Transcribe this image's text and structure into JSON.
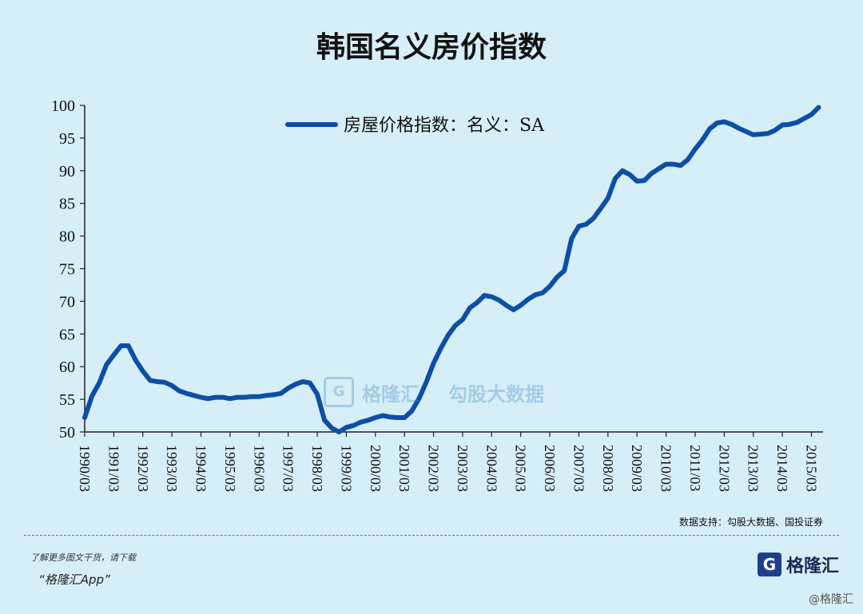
{
  "header": {
    "title": "韩国名义房价指数"
  },
  "chart_data": {
    "type": "line",
    "title": "韩国名义房价指数",
    "xlabel": "",
    "ylabel": "",
    "ylim": [
      50,
      100
    ],
    "yticks": [
      50,
      55,
      60,
      65,
      70,
      75,
      80,
      85,
      90,
      95,
      100
    ],
    "xticks": [
      "1990/03",
      "1991/03",
      "1992/03",
      "1993/03",
      "1994/03",
      "1995/03",
      "1996/03",
      "1997/03",
      "1998/03",
      "1999/03",
      "2000/03",
      "2001/03",
      "2002/03",
      "2003/03",
      "2004/03",
      "2005/03",
      "2006/03",
      "2007/03",
      "2008/03",
      "2009/03",
      "2010/03",
      "2011/03",
      "2012/03",
      "2013/03",
      "2014/03",
      "2015/03"
    ],
    "legend": {
      "position": "top-left",
      "entries": [
        "房屋价格指数：名义：SA"
      ]
    },
    "grid": false,
    "series": [
      {
        "name": "房屋价格指数：名义：SA",
        "color": "#0d4ea6",
        "x": [
          1990.0,
          1990.25,
          1990.5,
          1990.75,
          1991.0,
          1991.25,
          1991.5,
          1991.75,
          1992.0,
          1992.25,
          1992.5,
          1992.75,
          1993.0,
          1993.25,
          1993.5,
          1993.75,
          1994.0,
          1994.25,
          1994.5,
          1994.75,
          1995.0,
          1995.25,
          1995.5,
          1995.75,
          1996.0,
          1996.25,
          1996.5,
          1996.75,
          1997.0,
          1997.25,
          1997.5,
          1997.75,
          1998.0,
          1998.25,
          1998.5,
          1998.75,
          1999.0,
          1999.25,
          1999.5,
          1999.75,
          2000.0,
          2000.25,
          2000.5,
          2000.75,
          2001.0,
          2001.25,
          2001.5,
          2001.75,
          2002.0,
          2002.25,
          2002.5,
          2002.75,
          2003.0,
          2003.25,
          2003.5,
          2003.75,
          2004.0,
          2004.25,
          2004.5,
          2004.75,
          2005.0,
          2005.25,
          2005.5,
          2005.75,
          2006.0,
          2006.25,
          2006.5,
          2006.75,
          2007.0,
          2007.25,
          2007.5,
          2007.75,
          2008.0,
          2008.25,
          2008.5,
          2008.75,
          2009.0,
          2009.25,
          2009.5,
          2009.75,
          2010.0,
          2010.25,
          2010.5,
          2010.75,
          2011.0,
          2011.25,
          2011.5,
          2011.75,
          2012.0,
          2012.25,
          2012.5,
          2012.75,
          2013.0,
          2013.25,
          2013.5,
          2013.75,
          2014.0,
          2014.25,
          2014.5,
          2014.75,
          2015.0,
          2015.25
        ],
        "values": [
          52.2,
          55.5,
          57.5,
          60.3,
          61.8,
          63.2,
          63.2,
          61.0,
          59.3,
          57.9,
          57.7,
          57.6,
          57.1,
          56.3,
          55.9,
          55.6,
          55.3,
          55.1,
          55.3,
          55.3,
          55.1,
          55.3,
          55.3,
          55.4,
          55.4,
          55.6,
          55.7,
          55.9,
          56.7,
          57.3,
          57.7,
          57.5,
          55.8,
          51.8,
          50.6,
          50.0,
          50.7,
          51.0,
          51.5,
          51.8,
          52.2,
          52.5,
          52.3,
          52.2,
          52.2,
          53.2,
          55.1,
          57.6,
          60.5,
          62.8,
          64.8,
          66.3,
          67.2,
          69.0,
          69.8,
          70.9,
          70.7,
          70.2,
          69.4,
          68.7,
          69.4,
          70.3,
          71.0,
          71.3,
          72.3,
          73.7,
          74.7,
          79.6,
          81.5,
          81.8,
          82.7,
          84.2,
          85.8,
          88.8,
          90.0,
          89.4,
          88.4,
          88.5,
          89.6,
          90.3,
          91.0,
          91.0,
          90.8,
          91.7,
          93.3,
          94.7,
          96.4,
          97.3,
          97.5,
          97.1,
          96.5,
          96.0,
          95.5,
          95.6,
          95.7,
          96.2,
          97.0,
          97.1,
          97.4,
          98.0,
          98.6,
          99.7
        ]
      }
    ]
  },
  "watermark": {
    "left": "格隆汇",
    "right": "勾股大数据"
  },
  "source": {
    "text": "数据支持：勾股大数据、国投证券"
  },
  "footer": {
    "note": "了解更多图文干货，请下载",
    "app": "“格隆汇App”",
    "brand_icon": "G",
    "brand_name": "格隆汇",
    "brand_small": "@格隆汇"
  }
}
